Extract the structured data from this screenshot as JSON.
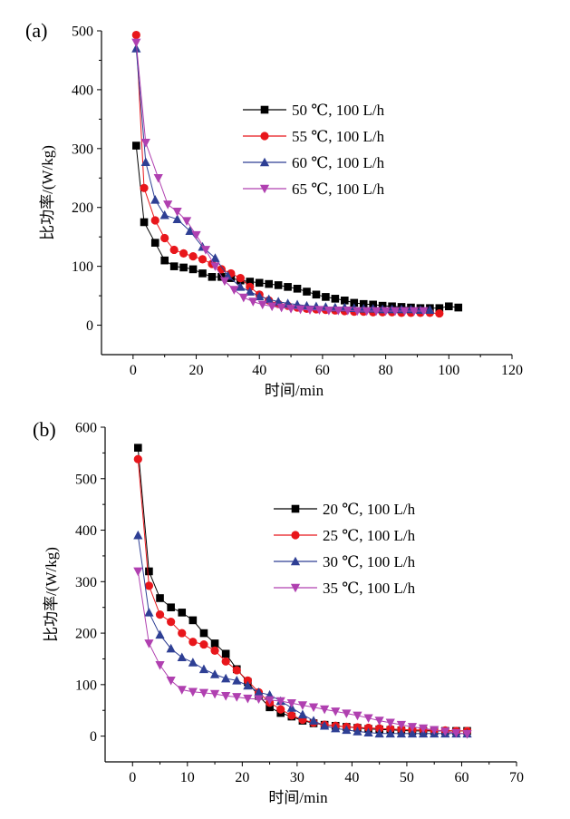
{
  "chart_data": [
    {
      "type": "line",
      "panel_label": "(a)",
      "xlabel": "时间/min",
      "ylabel": "比功率/(W/kg)",
      "xlim": [
        -10,
        120
      ],
      "ylim": [
        -50,
        500
      ],
      "xticks": [
        0,
        20,
        40,
        60,
        80,
        100,
        120
      ],
      "yticks": [
        0,
        100,
        200,
        300,
        400,
        500
      ],
      "legend_position": "top-right",
      "series": [
        {
          "name": "50 ℃, 100 L/h",
          "color": "#000000",
          "marker": "square",
          "x": [
            1,
            3.5,
            7,
            10,
            13,
            16,
            19,
            22,
            25,
            28,
            31,
            34,
            37,
            40,
            43,
            46,
            49,
            52,
            55,
            58,
            61,
            64,
            67,
            70,
            73,
            76,
            79,
            82,
            85,
            88,
            91,
            94,
            97,
            100,
            103
          ],
          "y": [
            305,
            175,
            140,
            110,
            100,
            98,
            95,
            88,
            82,
            82,
            80,
            76,
            74,
            72,
            70,
            68,
            65,
            62,
            57,
            52,
            48,
            45,
            42,
            38,
            36,
            35,
            33,
            32,
            31,
            30,
            29,
            29,
            29,
            32,
            30
          ]
        },
        {
          "name": "55 ℃, 100 L/h",
          "color": "#e8161b",
          "marker": "circle",
          "x": [
            1,
            3.5,
            7,
            10,
            13,
            16,
            19,
            22,
            25,
            28,
            31,
            34,
            37,
            40,
            43,
            46,
            49,
            52,
            55,
            58,
            61,
            64,
            67,
            70,
            73,
            76,
            79,
            82,
            85,
            88,
            91,
            94,
            97
          ],
          "y": [
            493,
            233,
            178,
            148,
            128,
            122,
            117,
            112,
            104,
            95,
            88,
            80,
            65,
            52,
            42,
            36,
            33,
            30,
            28,
            27,
            26,
            25,
            24,
            23,
            23,
            22,
            22,
            22,
            21,
            21,
            21,
            21,
            20
          ]
        },
        {
          "name": "60 ℃, 100 L/h",
          "color": "#2e3f94",
          "marker": "triangle-up",
          "x": [
            1,
            4,
            7,
            10,
            14,
            18,
            22,
            26,
            30,
            34,
            37,
            40,
            43,
            46,
            49,
            52,
            55,
            58,
            61,
            64,
            67,
            70,
            73,
            76,
            79,
            82,
            85,
            88,
            91,
            94
          ],
          "y": [
            470,
            277,
            213,
            187,
            180,
            160,
            133,
            114,
            84,
            65,
            57,
            49,
            44,
            40,
            37,
            35,
            33,
            32,
            31,
            30,
            30,
            29,
            28,
            28,
            27,
            27,
            27,
            27,
            26,
            26
          ]
        },
        {
          "name": "65 ℃, 100 L/h",
          "color": "#b040b0",
          "marker": "triangle-down",
          "x": [
            1,
            4,
            8,
            11,
            14,
            17,
            20,
            23,
            26,
            29,
            32,
            35,
            38,
            41,
            44,
            47,
            50,
            53,
            56,
            59,
            62,
            65,
            68,
            71,
            74,
            77,
            80,
            83,
            86,
            89,
            92
          ],
          "y": [
            480,
            310,
            250,
            205,
            193,
            177,
            153,
            128,
            100,
            75,
            60,
            47,
            40,
            35,
            32,
            30,
            28,
            27,
            26,
            26,
            25,
            25,
            25,
            24,
            24,
            24,
            24,
            24,
            24,
            24,
            24
          ]
        }
      ]
    },
    {
      "type": "line",
      "panel_label": "(b)",
      "xlabel": "时间/min",
      "ylabel": "比功率/(W/kg)",
      "xlim": [
        -5,
        70
      ],
      "ylim": [
        -50,
        600
      ],
      "xticks": [
        0,
        10,
        20,
        30,
        40,
        50,
        60,
        70
      ],
      "yticks": [
        0,
        100,
        200,
        300,
        400,
        500,
        600
      ],
      "legend_position": "top-right",
      "series": [
        {
          "name": "20 ℃, 100 L/h",
          "color": "#000000",
          "marker": "square",
          "x": [
            1,
            3,
            5,
            7,
            9,
            11,
            13,
            15,
            17,
            19,
            21,
            23,
            25,
            27,
            29,
            31,
            33,
            35,
            37,
            39,
            41,
            43,
            45,
            47,
            49,
            51,
            53,
            55,
            57,
            59,
            61
          ],
          "y": [
            560,
            320,
            268,
            250,
            240,
            225,
            200,
            180,
            160,
            130,
            105,
            78,
            56,
            45,
            38,
            30,
            25,
            22,
            20,
            18,
            16,
            14,
            13,
            12,
            11,
            10,
            10,
            10,
            10,
            10,
            10
          ]
        },
        {
          "name": "25 ℃, 100 L/h",
          "color": "#e8161b",
          "marker": "circle",
          "x": [
            1,
            3,
            5,
            7,
            9,
            11,
            13,
            15,
            17,
            19,
            21,
            23,
            25,
            27,
            29,
            31,
            33,
            35,
            37,
            39,
            41,
            43,
            45,
            47,
            49,
            51,
            53,
            55,
            57,
            59,
            61
          ],
          "y": [
            538,
            292,
            236,
            222,
            200,
            183,
            178,
            166,
            145,
            128,
            108,
            85,
            65,
            52,
            40,
            32,
            26,
            22,
            20,
            18,
            17,
            16,
            15,
            14,
            13,
            12,
            12,
            11,
            11,
            10,
            10
          ]
        },
        {
          "name": "30 ℃, 100 L/h",
          "color": "#2e3f94",
          "marker": "triangle-up",
          "x": [
            1,
            3,
            5,
            7,
            9,
            11,
            13,
            15,
            17,
            19,
            21,
            23,
            25,
            27,
            29,
            31,
            33,
            35,
            37,
            39,
            41,
            43,
            45,
            47,
            49,
            51,
            53,
            55,
            57,
            59,
            61
          ],
          "y": [
            390,
            240,
            197,
            170,
            153,
            143,
            130,
            120,
            112,
            108,
            98,
            85,
            80,
            68,
            55,
            42,
            30,
            20,
            15,
            12,
            9,
            7,
            5,
            5,
            5,
            5,
            5,
            5,
            5,
            5,
            5
          ]
        },
        {
          "name": "35 ℃, 100 L/h",
          "color": "#b040b0",
          "marker": "triangle-down",
          "x": [
            1,
            3,
            5,
            7,
            9,
            11,
            13,
            15,
            17,
            19,
            21,
            23,
            25,
            27,
            29,
            31,
            33,
            35,
            37,
            39,
            41,
            43,
            45,
            47,
            49,
            51,
            53,
            55,
            57,
            59,
            61
          ],
          "y": [
            320,
            180,
            138,
            108,
            90,
            86,
            84,
            82,
            78,
            76,
            73,
            72,
            70,
            68,
            64,
            60,
            56,
            52,
            48,
            44,
            40,
            35,
            30,
            26,
            22,
            18,
            15,
            12,
            9,
            6,
            4
          ]
        }
      ]
    }
  ]
}
